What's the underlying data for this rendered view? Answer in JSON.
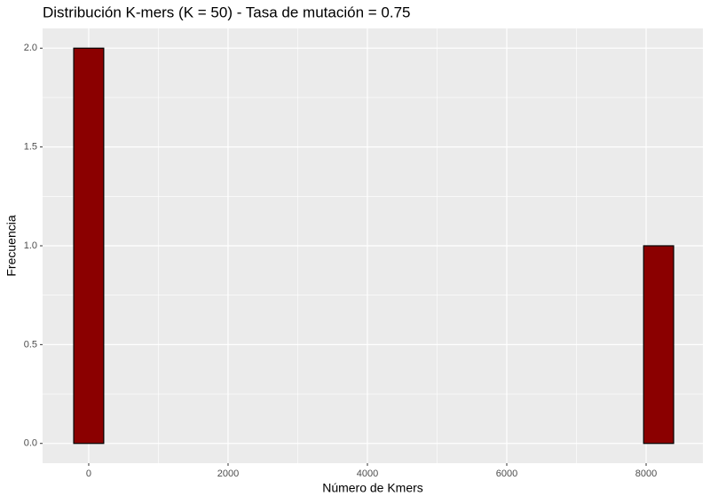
{
  "chart_data": {
    "type": "histogram",
    "title": "Distribución K-mers (K = 50) - Tasa de mutación = 0.75",
    "x_label": "Número de Kmers",
    "y_label": "Frecuencia",
    "bins": [
      -215.25,
      215.25,
      645.75,
      1076.25,
      1506.75,
      1937.25,
      2367.75,
      2798.25,
      3228.75,
      3659.25,
      4089.75,
      4520.25,
      4950.75,
      5381.25,
      5811.75,
      6242.25,
      6672.75,
      7103.25,
      7533.75,
      7964.25,
      8394.75
    ],
    "values": [
      2,
      0,
      0,
      0,
      0,
      0,
      0,
      0,
      0,
      0,
      0,
      0,
      0,
      0,
      0,
      0,
      0,
      0,
      0,
      1
    ],
    "color": "#8b0000",
    "edge_color": "#000000",
    "xlim": [
      -662,
      8815
    ],
    "ylim": [
      -0.1,
      2.1
    ],
    "xticks": [
      0,
      2000,
      4000,
      6000,
      8000
    ],
    "yticks": [
      {
        "value": 0,
        "label": "0.0"
      },
      {
        "value": 0.5,
        "label": "0.5"
      },
      {
        "value": 1,
        "label": "1.0"
      },
      {
        "value": 1.5,
        "label": "1.5"
      },
      {
        "value": 2,
        "label": "2.0"
      }
    ],
    "x_minor_ticks": [
      1000,
      3000,
      5000,
      7000
    ],
    "y_minor_ticks": [
      0.25,
      0.75,
      1.25,
      1.75
    ],
    "grid": true
  }
}
